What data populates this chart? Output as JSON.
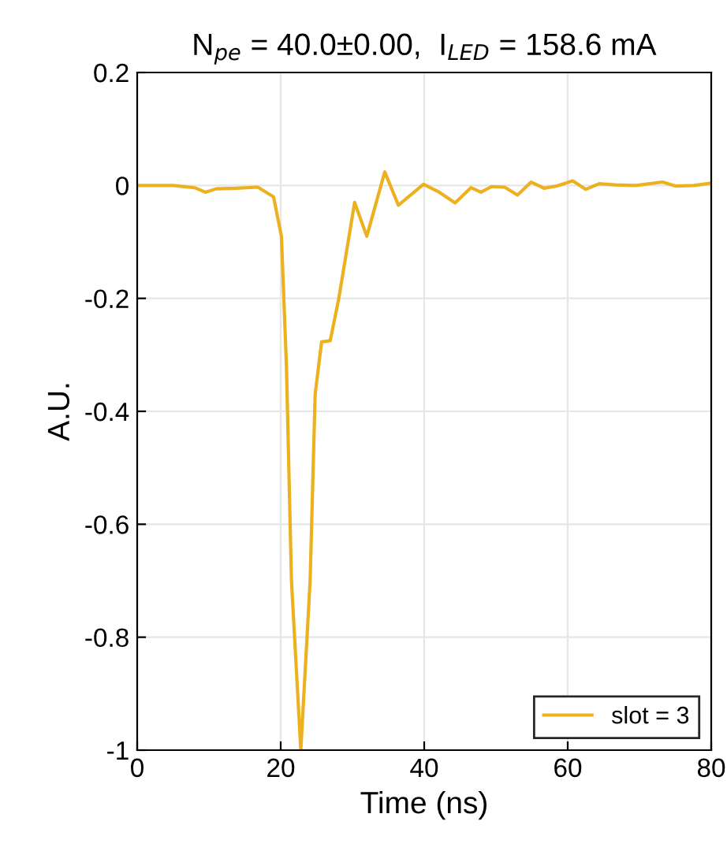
{
  "chart_data": {
    "type": "line",
    "title": "N$_{pe}$ = 40.0±0.00,  I$_{LED}$ = 158.6 mA",
    "xlabel": "Time (ns)",
    "ylabel": "A.U.",
    "series": [
      {
        "name": "slot = 3",
        "color": "#edb120",
        "x": [
          0,
          5,
          8,
          9.5,
          11,
          13.8,
          16.8,
          19.0,
          20.1,
          20.8,
          21.5,
          22.8,
          24.1,
          24.8,
          25.7,
          26.9,
          28.1,
          30.3,
          32.0,
          34.5,
          36.4,
          39.9,
          42.1,
          44.3,
          46.5,
          47.9,
          49.4,
          51.2,
          53.0,
          54.9,
          56.7,
          58.5,
          60.7,
          62.5,
          64.4,
          66.6,
          69.5,
          73.2,
          75.0,
          77.6,
          80
        ],
        "values": [
          0,
          0,
          -0.004,
          -0.012,
          -0.006,
          -0.005,
          -0.003,
          -0.02,
          -0.09,
          -0.32,
          -0.7,
          -1.0,
          -0.7,
          -0.37,
          -0.277,
          -0.275,
          -0.2,
          -0.03,
          -0.09,
          0.024,
          -0.035,
          0.002,
          -0.012,
          -0.031,
          -0.004,
          -0.012,
          -0.002,
          -0.003,
          -0.017,
          0.006,
          -0.005,
          -0.001,
          0.008,
          -0.007,
          0.003,
          0.001,
          0,
          0.006,
          -0.001,
          0,
          0.004
        ]
      }
    ],
    "xlim": [
      0,
      80
    ],
    "xticks": [
      0,
      20,
      40,
      60,
      80
    ],
    "ylim": [
      -1,
      0.2
    ],
    "yticks": [
      {
        "value": -1,
        "label": "-1"
      },
      {
        "value": -0.8,
        "label": "-0.8"
      },
      {
        "value": -0.6,
        "label": "-0.6"
      },
      {
        "value": -0.4,
        "label": "-0.4"
      },
      {
        "value": -0.2,
        "label": "-0.2"
      },
      0,
      0.2
    ],
    "grid": true,
    "legend": "bottom right",
    "line_style": "solid",
    "marker": "none"
  }
}
